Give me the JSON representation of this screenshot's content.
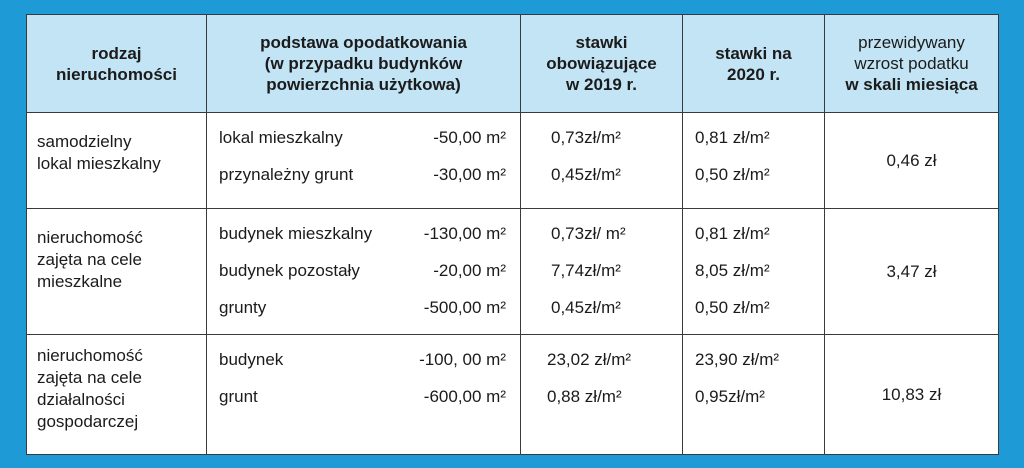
{
  "header": {
    "col1": [
      "rodzaj",
      "nieruchomości"
    ],
    "col2": [
      "podstawa  opodatkowania",
      "(w  przypadku  budynków",
      "powierzchnia  użytkowa)"
    ],
    "col3": [
      "stawki",
      "obowiązujące",
      "w  2019 r."
    ],
    "col4": [
      "stawki na",
      "2020 r."
    ],
    "col5": [
      "przewidywany",
      "wzrost  podatku",
      "w  skali miesiąca"
    ]
  },
  "rows": [
    {
      "type": [
        "samodzielny",
        "lokal   mieszkalny"
      ],
      "items": [
        {
          "name": "lokal   mieszkalny",
          "area": "-50,00  m²",
          "rate2019": "0,73zł/m²",
          "rate2020": "0,81 zł/m²"
        },
        {
          "name": "przynależny    grunt",
          "area": "-30,00  m²",
          "rate2019": "0,45zł/m²",
          "rate2020": "0,50 zł/m²"
        }
      ],
      "increase": "0,46 zł"
    },
    {
      "type": [
        "nieruchomość",
        "zajęta  na cele",
        "mieszkalne"
      ],
      "items": [
        {
          "name": "budynek    mieszkalny",
          "area": "-130,00 m²",
          "rate2019": "0,73zł/  m²",
          "rate2020": "0,81 zł/m²"
        },
        {
          "name": "budynek    pozostały",
          "area": "-20,00 m²",
          "rate2019": "7,74zł/m²",
          "rate2020": "8,05 zł/m²"
        },
        {
          "name": "grunty",
          "area": "-500,00 m²",
          "rate2019": "0,45zł/m²",
          "rate2020": "0,50 zł/m²"
        }
      ],
      "increase": "3,47 zł"
    },
    {
      "type": [
        "nieruchomość",
        "zajęta  na cele",
        "działalności",
        "gospodarczej"
      ],
      "items": [
        {
          "name": "budynek",
          "area": "-100, 00 m²",
          "rate2019": "23,02 zł/m²",
          "rate2020": "23,90 zł/m²"
        },
        {
          "name": "grunt",
          "area": "-600,00  m²",
          "rate2019": "0,88 zł/m²",
          "rate2020": "0,95zł/m²"
        }
      ],
      "increase": "10,83 zł"
    }
  ],
  "colors": {
    "border": "#1e9ad6",
    "header_bg": "#c2e4f5"
  }
}
